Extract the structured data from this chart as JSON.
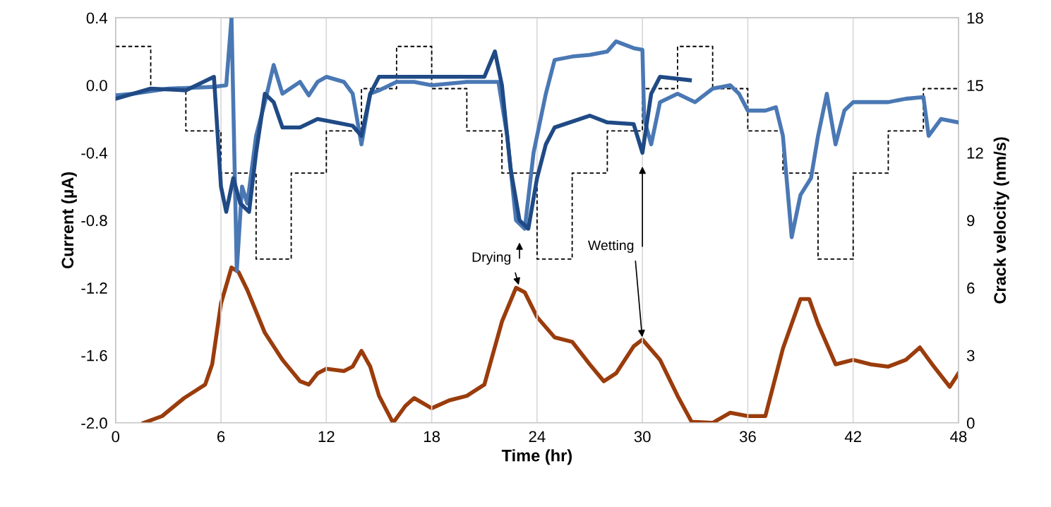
{
  "chart_data": {
    "type": "line",
    "xlabel": "Time (hr)",
    "ylabel": "Current (µA)",
    "y2label": "Crack velocity (nm/s)",
    "xlim": [
      0,
      48
    ],
    "xticks": [
      0,
      6,
      12,
      18,
      24,
      30,
      36,
      42,
      48
    ],
    "ylim": [
      -2.0,
      0.4
    ],
    "yticks": [
      {
        "value": 0.4,
        "label": "0.4"
      },
      {
        "value": 0.0,
        "label": "0.0"
      },
      {
        "value": -0.4,
        "label": "-0.4"
      },
      {
        "value": -0.8,
        "label": "-0.8"
      },
      {
        "value": -1.2,
        "label": "-1.2"
      },
      {
        "value": -1.6,
        "label": "-1.6"
      },
      {
        "value": -2.0,
        "label": "-2.0"
      }
    ],
    "y2lim": [
      0,
      18
    ],
    "y2ticks": [
      0,
      3,
      6,
      9,
      12,
      15,
      18
    ],
    "grid": "x",
    "marker": "none",
    "series": [
      {
        "type": "step",
        "color": "#000000",
        "line_style": "dashed",
        "x": [
          0,
          2,
          4,
          6,
          8,
          10,
          12,
          14,
          16,
          18,
          20,
          22,
          24,
          26,
          28,
          30,
          32,
          34,
          36,
          38,
          40,
          42,
          44,
          46,
          48
        ],
        "values": [
          0.23,
          -0.02,
          -0.27,
          -0.52,
          -1.03,
          -0.52,
          -0.27,
          -0.02,
          0.23,
          -0.02,
          -0.27,
          -0.52,
          -1.03,
          -0.52,
          -0.27,
          -0.02,
          0.23,
          -0.02,
          -0.27,
          -0.52,
          -1.03,
          -0.52,
          -0.27,
          -0.02,
          -0.02
        ]
      },
      {
        "color": "#4a78b4",
        "x": [
          0,
          1,
          3,
          5.5,
          6.3,
          6.6,
          6.9,
          7.2,
          7.5,
          8,
          8.5,
          9,
          9.5,
          10.5,
          11,
          11.5,
          12,
          13,
          13.5,
          14,
          14.5,
          15,
          16,
          17,
          18,
          20,
          21,
          21.8,
          22.3,
          22.8,
          23.3,
          23.8,
          24.5,
          25,
          26,
          27,
          28,
          28.5,
          29.5,
          30,
          30.1,
          30.5,
          31,
          32,
          33,
          34,
          35,
          35.5,
          36,
          37,
          37.6,
          38,
          38.5,
          39,
          39.6,
          40,
          40.5,
          41,
          41.5,
          42,
          43,
          44,
          45,
          46,
          46.3,
          47,
          48
        ],
        "values": [
          -0.06,
          -0.05,
          -0.02,
          -0.01,
          0.0,
          0.4,
          -1.1,
          -0.6,
          -0.7,
          -0.3,
          -0.1,
          0.12,
          -0.05,
          0.02,
          -0.06,
          0.02,
          0.05,
          0.02,
          -0.05,
          -0.35,
          -0.05,
          -0.03,
          0.02,
          0.02,
          0.0,
          0.02,
          0.02,
          0.02,
          -0.3,
          -0.8,
          -0.85,
          -0.4,
          -0.05,
          0.15,
          0.17,
          0.18,
          0.2,
          0.26,
          0.22,
          0.21,
          -0.2,
          -0.35,
          -0.1,
          -0.05,
          -0.1,
          -0.02,
          0.0,
          -0.05,
          -0.15,
          -0.15,
          -0.13,
          -0.3,
          -0.9,
          -0.65,
          -0.55,
          -0.3,
          -0.05,
          -0.35,
          -0.15,
          -0.1,
          -0.1,
          -0.1,
          -0.08,
          -0.07,
          -0.3,
          -0.2,
          -0.22
        ]
      },
      {
        "color": "#1f4a85",
        "x": [
          0,
          2,
          4,
          5.6,
          6.0,
          6.3,
          6.7,
          7.1,
          7.6,
          8,
          8.5,
          9,
          9.5,
          10.5,
          11.5,
          12.5,
          13.5,
          14,
          14.5,
          15,
          17,
          19,
          21,
          21.6,
          22,
          22.5,
          23,
          23.5,
          24,
          24.5,
          25,
          27,
          28,
          29.5,
          30,
          30.5,
          31,
          32.7
        ],
        "values": [
          -0.08,
          -0.02,
          -0.03,
          0.05,
          -0.6,
          -0.75,
          -0.55,
          -0.7,
          -0.75,
          -0.4,
          -0.05,
          -0.1,
          -0.25,
          -0.25,
          -0.2,
          -0.22,
          -0.24,
          -0.3,
          -0.05,
          0.05,
          0.05,
          0.05,
          0.05,
          0.2,
          0.0,
          -0.5,
          -0.8,
          -0.85,
          -0.55,
          -0.35,
          -0.25,
          -0.18,
          -0.22,
          -0.23,
          -0.4,
          -0.05,
          0.05,
          0.03
        ]
      },
      {
        "color": "#9a3c0c",
        "axis": "y2",
        "x": [
          1.6,
          2.65,
          3.9,
          5.1,
          5.5,
          6.0,
          6.6,
          7.0,
          7.5,
          8.5,
          9.5,
          10.5,
          11,
          11.5,
          12,
          13,
          13.5,
          14,
          14.5,
          15,
          15.8,
          16.5,
          17,
          18,
          19,
          20,
          21,
          22,
          22.8,
          23.3,
          24,
          25,
          26,
          27,
          27.8,
          28.5,
          29.5,
          30,
          31,
          32,
          32.8,
          34,
          35,
          36,
          37,
          38,
          39,
          39.5,
          40,
          41,
          42,
          43,
          44,
          45,
          45.8,
          46.5,
          47.5,
          48
        ],
        "values": [
          0,
          0.3,
          1.1,
          1.7,
          2.6,
          5.3,
          6.9,
          6.7,
          5.9,
          4.0,
          2.8,
          1.85,
          1.7,
          2.2,
          2.4,
          2.3,
          2.5,
          3.2,
          2.5,
          1.2,
          0,
          0.75,
          1.1,
          0.65,
          1.0,
          1.2,
          1.7,
          4.5,
          6.0,
          5.8,
          4.7,
          3.8,
          3.6,
          2.6,
          1.85,
          2.2,
          3.4,
          3.7,
          2.8,
          1.2,
          0.05,
          0,
          0.45,
          0.3,
          0.3,
          3.3,
          5.5,
          5.5,
          4.4,
          2.6,
          2.8,
          2.6,
          2.5,
          2.8,
          3.35,
          2.6,
          1.6,
          2.2
        ]
      }
    ],
    "annotations": [
      {
        "text": "Drying",
        "x": 23,
        "y": -1.2
      },
      {
        "text": "Wetting",
        "x": 30,
        "y": -1.51
      }
    ]
  }
}
